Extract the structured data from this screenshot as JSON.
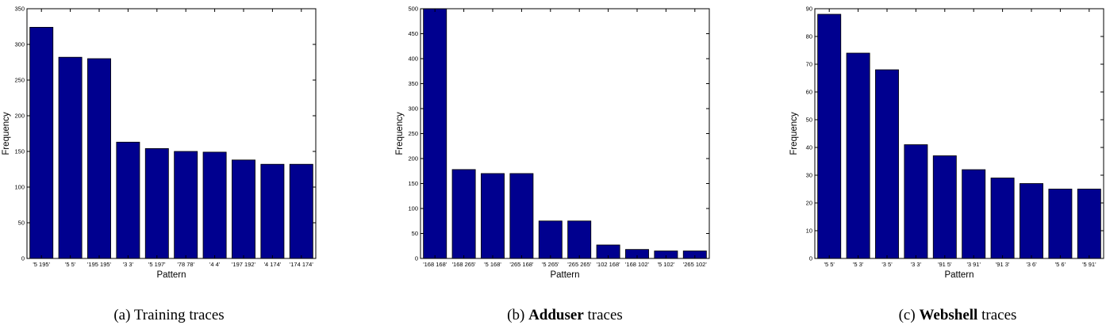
{
  "chart_data": [
    {
      "type": "bar",
      "categories": [
        "'5 195'",
        "'5 5'",
        "'195 195'",
        "'3 3'",
        "'5 197'",
        "'78 78'",
        "'4 4'",
        "'197 192'",
        "'4 174'",
        "'174 174'"
      ],
      "values": [
        324,
        282,
        280,
        163,
        154,
        150,
        149,
        138,
        132,
        132
      ],
      "xlabel": "Pattern",
      "ylabel": "Frequency",
      "ylim": [
        0,
        350
      ],
      "yticks": [
        0,
        50,
        100,
        150,
        200,
        250,
        300,
        350
      ],
      "bar_color": "#00008f",
      "caption": {
        "prefix": "(a) ",
        "bold": "",
        "text": "Training traces"
      }
    },
    {
      "type": "bar",
      "categories": [
        "'168 168'",
        "'168 265'",
        "'5 168'",
        "'265 168'",
        "'5 265'",
        "'265 265'",
        "'102 168'",
        "'168 102'",
        "'5 102'",
        "'265 102'"
      ],
      "values": [
        500,
        178,
        170,
        170,
        75,
        75,
        27,
        18,
        15,
        15
      ],
      "xlabel": "Pattern",
      "ylabel": "Frequency",
      "ylim": [
        0,
        500
      ],
      "yticks": [
        0,
        50,
        100,
        150,
        200,
        250,
        300,
        350,
        400,
        450,
        500
      ],
      "bar_color": "#00008f",
      "caption": {
        "prefix": "(b) ",
        "bold": "Adduser",
        "text": " traces"
      }
    },
    {
      "type": "bar",
      "categories": [
        "'5 5'",
        "'5 3'",
        "'3 5'",
        "'3 3'",
        "'91 5'",
        "'3 91'",
        "'91 3'",
        "'3 6'",
        "'5 6'",
        "'5 91'"
      ],
      "values": [
        88,
        74,
        68,
        41,
        37,
        32,
        29,
        27,
        25,
        25
      ],
      "xlabel": "Pattern",
      "ylabel": "Frequency",
      "ylim": [
        0,
        90
      ],
      "yticks": [
        0,
        10,
        20,
        30,
        40,
        50,
        60,
        70,
        80,
        90
      ],
      "bar_color": "#00008f",
      "caption": {
        "prefix": "(c) ",
        "bold": "Webshell",
        "text": " traces"
      }
    }
  ]
}
